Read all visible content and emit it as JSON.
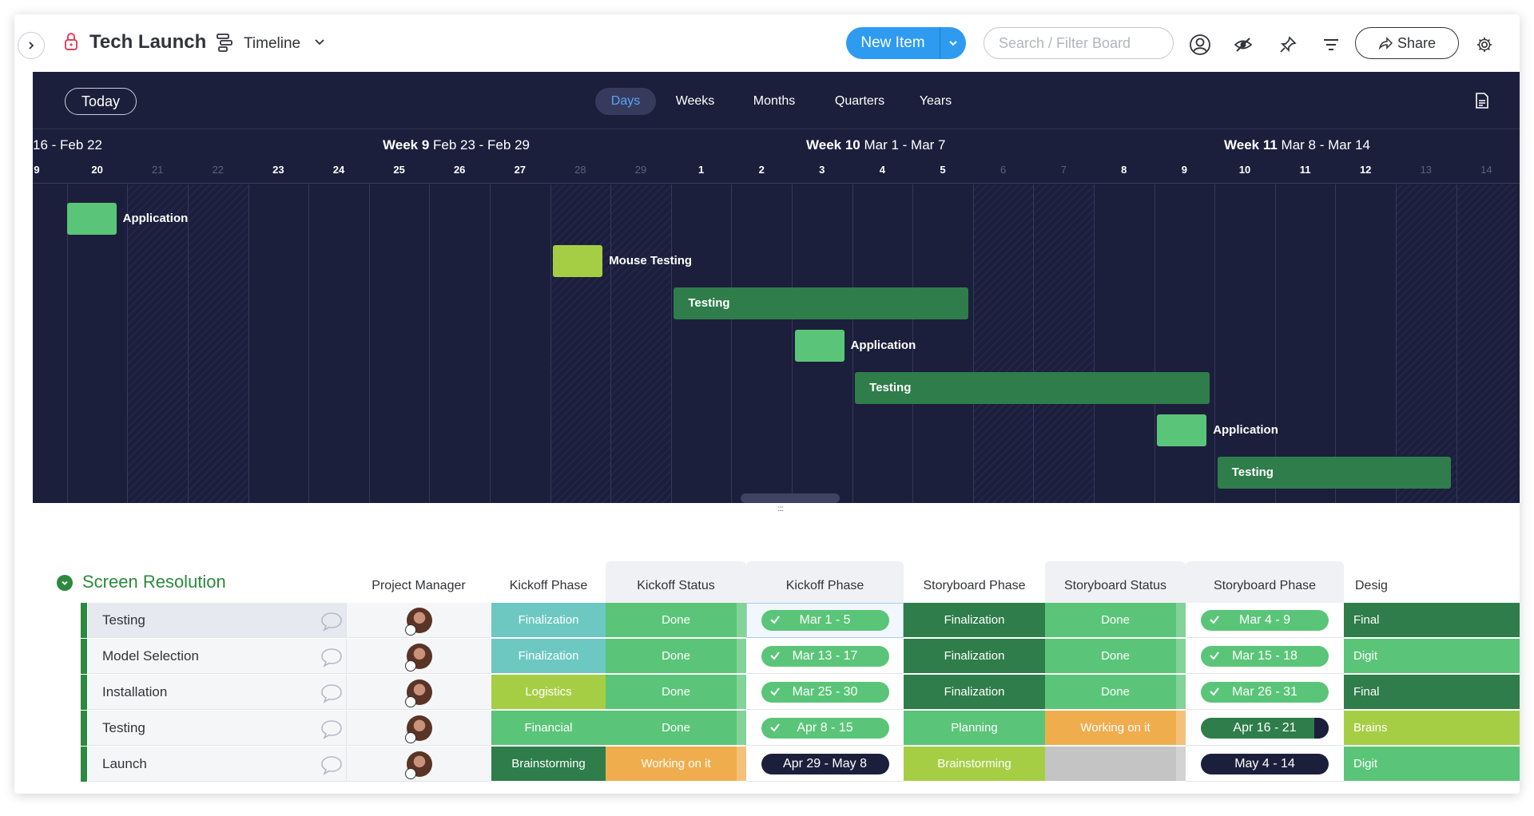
{
  "topbar": {
    "board_title": "Tech Launch",
    "view_label": "Timeline",
    "new_item_label": "New Item",
    "search_placeholder": "Search / Filter Board",
    "share_label": "Share",
    "icons": [
      "chevron-right-icon",
      "lock-icon",
      "timeline-icon",
      "chevron-down-icon",
      "user-icon",
      "hide-icon",
      "pin-icon",
      "filter-icon",
      "share-arrow-icon",
      "gear-icon"
    ]
  },
  "timeline": {
    "today_label": "Today",
    "zoom_options": [
      "Days",
      "Weeks",
      "Months",
      "Quarters",
      "Years"
    ],
    "zoom_selected": "Days",
    "weeks": [
      {
        "bold": "",
        "range": "16 - Feb 22"
      },
      {
        "bold": "Week 9",
        "range": "Feb 23 - Feb 29"
      },
      {
        "bold": "Week 10",
        "range": "Mar 1 - Mar 7"
      },
      {
        "bold": "Week 11",
        "range": "Mar 8 - Mar 14"
      }
    ],
    "days": [
      "9",
      "20",
      "21",
      "22",
      "23",
      "24",
      "25",
      "26",
      "27",
      "28",
      "29",
      "1",
      "2",
      "3",
      "4",
      "5",
      "6",
      "7",
      "8",
      "9",
      "10",
      "11",
      "12",
      "13",
      "14"
    ],
    "weekend_days": [
      "21",
      "22",
      "28",
      "29",
      "6",
      "7",
      "13",
      "14"
    ],
    "bars": [
      {
        "label": "Application",
        "color": "#5ac578"
      },
      {
        "label": "Mouse Testing",
        "color": "#a6ce45"
      },
      {
        "label": "Testing",
        "color": "#2e7d4a"
      },
      {
        "label": "Application",
        "color": "#5ac578"
      },
      {
        "label": "Testing",
        "color": "#2e7d4a"
      },
      {
        "label": "Application",
        "color": "#5ac578"
      },
      {
        "label": "Testing",
        "color": "#2e7d4a"
      }
    ]
  },
  "table": {
    "group_title": "Screen Resolution",
    "group_color": "#2b8a3e",
    "columns": [
      "Project Manager",
      "Kickoff Phase",
      "Kickoff Status",
      "Kickoff Phase",
      "Storyboard Phase",
      "Storyboard Status",
      "Storyboard Phase",
      "Desig"
    ],
    "rows": [
      {
        "name": "Testing",
        "kickoff_phase": {
          "text": "Finalization",
          "color": "#6dc8c2"
        },
        "kickoff_status": {
          "text": "Done",
          "color": "#5ac578"
        },
        "kickoff_timeline": {
          "text": "Mar 1 - 5",
          "color": "#5ac578",
          "check": true
        },
        "story_phase": {
          "text": "Finalization",
          "color": "#2e7d4a"
        },
        "story_status": {
          "text": "Done",
          "color": "#5ac578"
        },
        "story_timeline": {
          "text": "Mar 4 - 9",
          "color": "#5ac578",
          "check": true
        },
        "design": {
          "text": "Final",
          "color": "#2e7d4a"
        }
      },
      {
        "name": "Model Selection",
        "kickoff_phase": {
          "text": "Finalization",
          "color": "#6dc8c2"
        },
        "kickoff_status": {
          "text": "Done",
          "color": "#5ac578"
        },
        "kickoff_timeline": {
          "text": "Mar 13 - 17",
          "color": "#5ac578",
          "check": true
        },
        "story_phase": {
          "text": "Finalization",
          "color": "#2e7d4a"
        },
        "story_status": {
          "text": "Done",
          "color": "#5ac578"
        },
        "story_timeline": {
          "text": "Mar 15 - 18",
          "color": "#5ac578",
          "check": true
        },
        "design": {
          "text": "Digit",
          "color": "#5ac578"
        }
      },
      {
        "name": "Installation",
        "kickoff_phase": {
          "text": "Logistics",
          "color": "#a6ce45"
        },
        "kickoff_status": {
          "text": "Done",
          "color": "#5ac578"
        },
        "kickoff_timeline": {
          "text": "Mar 25 - 30",
          "color": "#5ac578",
          "check": true
        },
        "story_phase": {
          "text": "Finalization",
          "color": "#2e7d4a"
        },
        "story_status": {
          "text": "Done",
          "color": "#5ac578"
        },
        "story_timeline": {
          "text": "Mar 26 - 31",
          "color": "#5ac578",
          "check": true
        },
        "design": {
          "text": "Final",
          "color": "#2e7d4a"
        }
      },
      {
        "name": "Testing",
        "kickoff_phase": {
          "text": "Financial",
          "color": "#5ac578"
        },
        "kickoff_status": {
          "text": "Done",
          "color": "#5ac578"
        },
        "kickoff_timeline": {
          "text": "Apr 8 - 15",
          "color": "#5ac578",
          "check": true
        },
        "story_phase": {
          "text": "Planning",
          "color": "#5ac578"
        },
        "story_status": {
          "text": "Working on it",
          "color": "#f0ad4e"
        },
        "story_timeline": {
          "text": "Apr 16 - 21",
          "color": "#2e7d4a",
          "check": false,
          "split": true
        },
        "design": {
          "text": "Brains",
          "color": "#a6ce45"
        }
      },
      {
        "name": "Launch",
        "kickoff_phase": {
          "text": "Brainstorming",
          "color": "#2e7d4a"
        },
        "kickoff_status": {
          "text": "Working on it",
          "color": "#f0ad4e"
        },
        "kickoff_timeline": {
          "text": "Apr 29 - May 8",
          "color": "#1c1f3b",
          "check": false
        },
        "story_phase": {
          "text": "Brainstorming",
          "color": "#a6ce45"
        },
        "story_status": {
          "text": "",
          "color": "#c4c4c4"
        },
        "story_timeline": {
          "text": "May 4 - 14",
          "color": "#1c1f3b",
          "check": false
        },
        "design": {
          "text": "Digit",
          "color": "#5ac578"
        }
      }
    ]
  }
}
